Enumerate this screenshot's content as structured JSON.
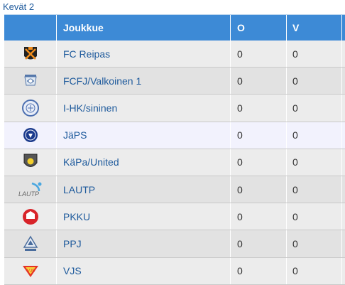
{
  "caption": "Kevät 2",
  "table": {
    "headers": {
      "logo": "",
      "team": "Joukkue",
      "o": "O",
      "v": "V"
    },
    "rows": [
      {
        "logo_icon": "fc-reipas-logo-icon",
        "team": "FC Reipas",
        "o": "0",
        "v": "0",
        "bg": "#ececec"
      },
      {
        "logo_icon": "fcfj-logo-icon",
        "team": "FCFJ/Valkoinen 1",
        "o": "0",
        "v": "0",
        "bg": "#e2e2e2"
      },
      {
        "logo_icon": "ihk-logo-icon",
        "team": "I-HK/sininen",
        "o": "0",
        "v": "0",
        "bg": "#ececec"
      },
      {
        "logo_icon": "japs-logo-icon",
        "team": "JäPS",
        "o": "0",
        "v": "0",
        "bg": "#f2f2fd"
      },
      {
        "logo_icon": "kapa-logo-icon",
        "team": "KäPa/United",
        "o": "0",
        "v": "0",
        "bg": "#ececec"
      },
      {
        "logo_icon": "lautp-logo-icon",
        "team": "LAUTP",
        "o": "0",
        "v": "0",
        "bg": "#e2e2e2"
      },
      {
        "logo_icon": "pkku-logo-icon",
        "team": "PKKU",
        "o": "0",
        "v": "0",
        "bg": "#ececec"
      },
      {
        "logo_icon": "ppj-logo-icon",
        "team": "PPJ",
        "o": "0",
        "v": "0",
        "bg": "#e2e2e2"
      },
      {
        "logo_icon": "vjs-logo-icon",
        "team": "VJS",
        "o": "0",
        "v": "0",
        "bg": "#ececec"
      }
    ]
  },
  "colors": {
    "header_bg": "#3d8ad6",
    "link": "#1e5a9c"
  }
}
